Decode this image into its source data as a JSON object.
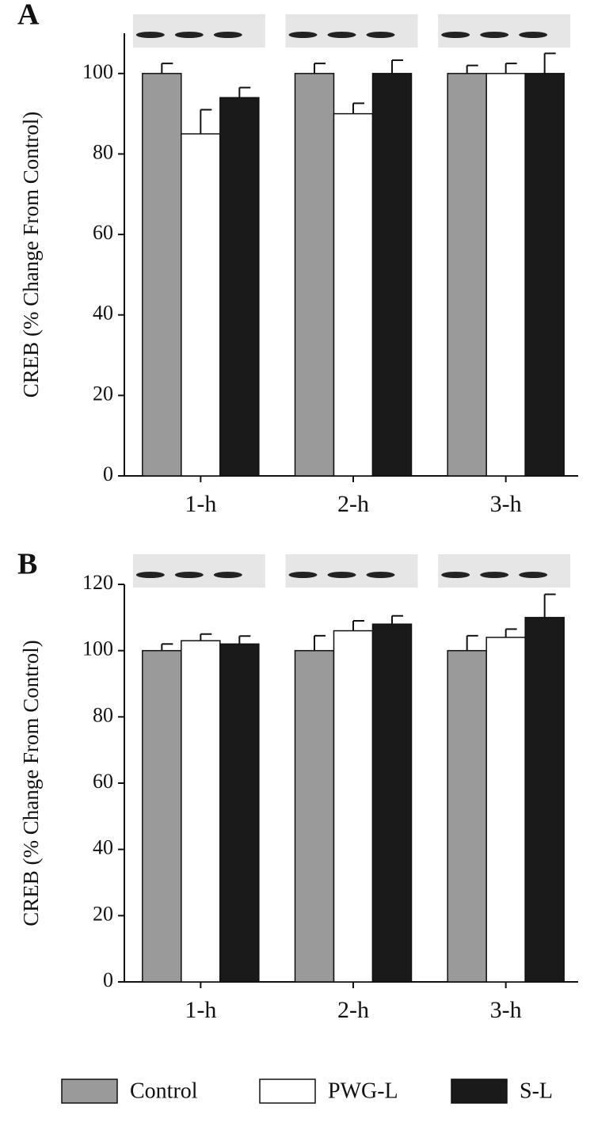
{
  "chart_data": [
    {
      "type": "bar",
      "label": "A",
      "y_label": "CREB (% Change From Control)",
      "categories": [
        "1-h",
        "2-h",
        "3-h"
      ],
      "series": [
        {
          "name": "Control",
          "color": "#9a9a9a",
          "values": [
            100,
            100,
            100
          ],
          "errors": [
            2.5,
            2.5,
            2
          ]
        },
        {
          "name": "PWG-L",
          "color": "#ffffff",
          "values": [
            85,
            90,
            100
          ],
          "errors": [
            6,
            2.6,
            2.5
          ]
        },
        {
          "name": "S-L",
          "color": "#1a1a1a",
          "values": [
            94,
            100,
            100
          ],
          "errors": [
            2.5,
            3.3,
            5
          ]
        }
      ],
      "ylim": [
        0,
        110
      ],
      "yticks": [
        0,
        20,
        40,
        60,
        80,
        100
      ]
    },
    {
      "type": "bar",
      "label": "B",
      "y_label": "CREB (% Change From Control)",
      "categories": [
        "1-h",
        "2-h",
        "3-h"
      ],
      "series": [
        {
          "name": "Control",
          "color": "#9a9a9a",
          "values": [
            100,
            100,
            100
          ],
          "errors": [
            2,
            4.5,
            4.5
          ]
        },
        {
          "name": "PWG-L",
          "color": "#ffffff",
          "values": [
            103,
            106,
            104
          ],
          "errors": [
            2,
            3,
            2.5
          ]
        },
        {
          "name": "S-L",
          "color": "#1a1a1a",
          "values": [
            102,
            108,
            110
          ],
          "errors": [
            2.4,
            2.5,
            7
          ]
        }
      ],
      "ylim": [
        0,
        120
      ],
      "yticks": [
        0,
        20,
        40,
        60,
        80,
        100,
        120
      ]
    }
  ]
}
